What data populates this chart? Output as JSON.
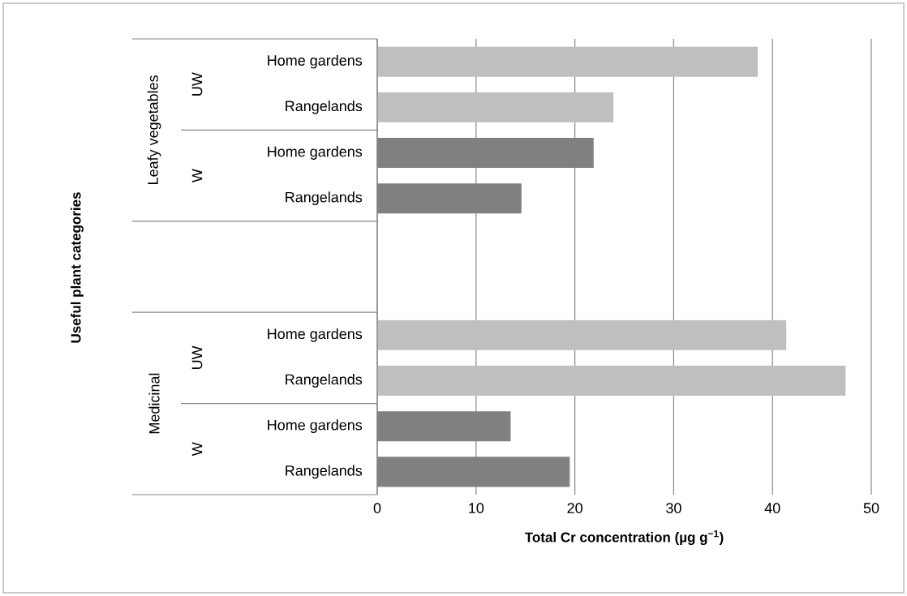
{
  "chart_data": {
    "type": "bar",
    "orientation": "horizontal",
    "xlabel": "Total Cr concentration (µg g$^{−1}$)",
    "categories": [
      "Home gardens",
      "Rangelands",
      "Home gardens",
      "Rangelands",
      null,
      null,
      "Home gardens",
      "Rangelands",
      "Home gardens",
      "Rangelands"
    ],
    "values": [
      38.5,
      23.9,
      21.9,
      14.6,
      null,
      null,
      41.4,
      47.4,
      13.5,
      19.5
    ],
    "colors": [
      "#bfbfbf",
      "#bfbfbf",
      "#808080",
      "#808080",
      null,
      null,
      "#bfbfbf",
      "#bfbfbf",
      "#808080",
      "#808080"
    ],
    "annotations": [
      "Leafy vegetables",
      "UW",
      "W",
      "Medicinal",
      "UW",
      "W",
      "Useful plant categories"
    ],
    "xlim": [
      0,
      50
    ],
    "xticks": [
      0,
      10,
      20,
      30,
      40,
      50
    ],
    "grid": "x"
  }
}
